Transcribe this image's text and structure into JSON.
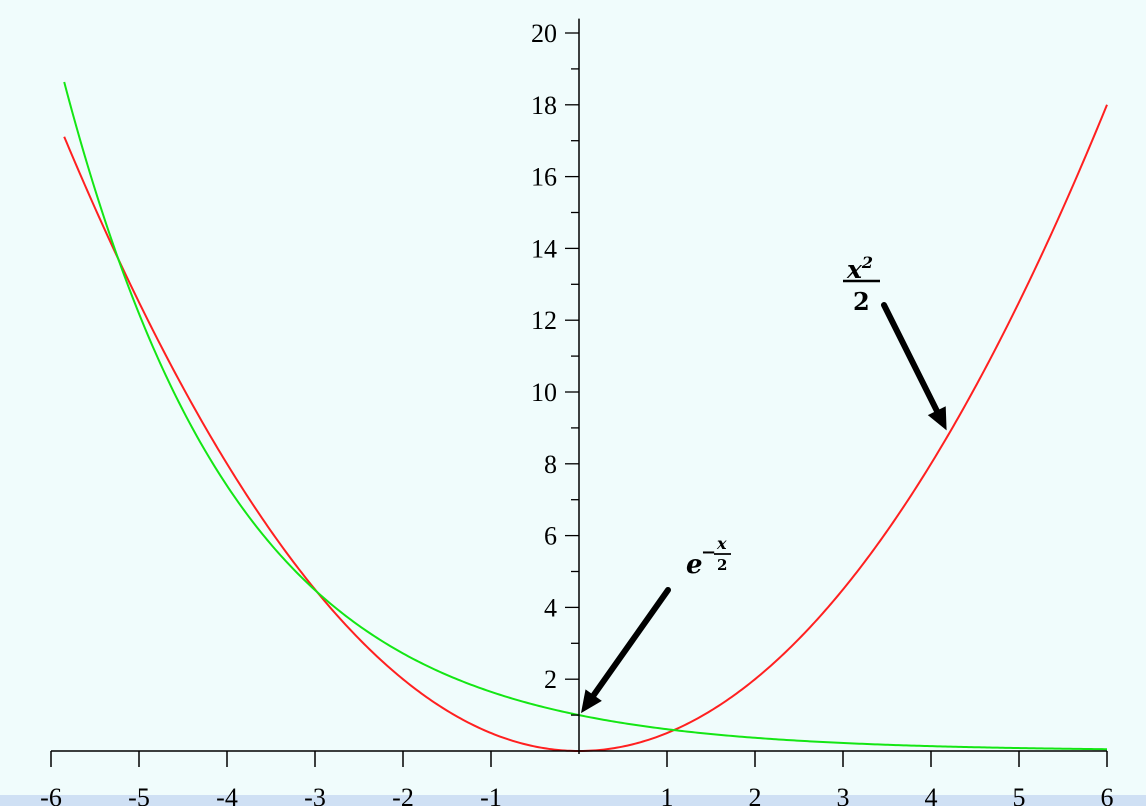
{
  "colors": {
    "background": "#f0fcfc",
    "bottom_band": "#cfe0f4",
    "axis": "#000000",
    "series_x2_over_2": "#ff2020",
    "series_exp": "#14e614",
    "arrow": "#000000"
  },
  "chart_data": {
    "type": "line",
    "title": "",
    "xlabel": "",
    "ylabel": "",
    "xlim": [
      -6,
      6
    ],
    "ylim": [
      0,
      20
    ],
    "x_ticks": [
      -6,
      -5,
      -4,
      -3,
      -2,
      -1,
      1,
      2,
      3,
      4,
      5,
      6
    ],
    "x_tick_labels": [
      "-6",
      "-5",
      "-4",
      "-3",
      "-2",
      "-1",
      "1",
      "2",
      "3",
      "4",
      "5",
      "6"
    ],
    "y_ticks": [
      2,
      4,
      6,
      8,
      10,
      12,
      14,
      16,
      18,
      20
    ],
    "y_tick_labels": [
      "2",
      "4",
      "6",
      "8",
      "10",
      "12",
      "14",
      "16",
      "18",
      "20"
    ],
    "y_minor_step": 1,
    "grid": false,
    "x_domain": [
      -5.85,
      6
    ],
    "series": [
      {
        "id": "x2_over_2",
        "expression": "x^2/2",
        "x": [
          -5.85,
          -5,
          -4,
          -3,
          -2,
          -1,
          0,
          1,
          2,
          3,
          4,
          5,
          6
        ],
        "y": [
          17.11,
          12.5,
          8,
          4.5,
          2,
          0.5,
          0,
          0.5,
          2,
          4.5,
          8,
          12.5,
          18
        ],
        "color": "#ff2020"
      },
      {
        "id": "exp_neg_x_over_2",
        "expression": "e^(-x/2)",
        "x": [
          -5.85,
          -5,
          -4,
          -3,
          -2,
          -1,
          0,
          1,
          2,
          3,
          4,
          5,
          6
        ],
        "y": [
          18.64,
          12.18,
          7.39,
          4.48,
          2.72,
          1.65,
          1,
          0.61,
          0.37,
          0.22,
          0.14,
          0.08,
          0.05
        ],
        "color": "#14e614"
      }
    ],
    "annotations": [
      {
        "id": "label-x2",
        "numerator_base": "x",
        "numerator_exp": "2",
        "denominator": "2",
        "points_to": {
          "x": 4.2,
          "y": 8.82
        }
      },
      {
        "id": "label-exp",
        "base": "e",
        "exponent_sign": "−",
        "exponent_num": "x",
        "exponent_den": "2",
        "points_to": {
          "x": 0,
          "y": 1
        }
      }
    ]
  }
}
